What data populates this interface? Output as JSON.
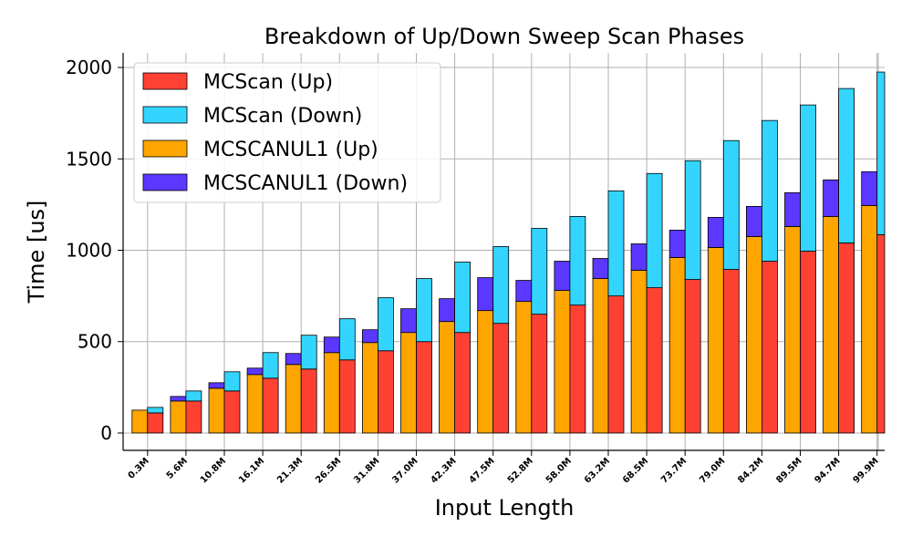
{
  "chart_data": {
    "type": "bar",
    "title": "Breakdown of Up/Down Sweep Scan Phases",
    "xlabel": "Input Length",
    "ylabel": "Time [us]",
    "ylim": [
      -95,
      2080
    ],
    "yticks": [
      0,
      500,
      1000,
      1500,
      2000
    ],
    "grid": true,
    "legend_position": "top-left",
    "categories": [
      "0.3M",
      "5.6M",
      "10.8M",
      "16.1M",
      "21.3M",
      "26.5M",
      "31.8M",
      "37.0M",
      "42.3M",
      "47.5M",
      "52.8M",
      "58.0M",
      "63.2M",
      "68.5M",
      "73.7M",
      "79.0M",
      "84.2M",
      "89.5M",
      "94.7M",
      "99.9M"
    ],
    "colors": {
      "mcscan_up": "#ff4133",
      "mcscan_down": "#33d5ff",
      "mcscanul1_up": "#ffa500",
      "mcscanul1_down": "#5b37ff"
    },
    "series": [
      {
        "name": "MCScan (Up)",
        "key": "mcscan_up",
        "group": "MCScan",
        "values": [
          110,
          175,
          230,
          300,
          350,
          400,
          450,
          500,
          550,
          600,
          650,
          700,
          750,
          795,
          840,
          895,
          940,
          995,
          1040,
          1085
        ]
      },
      {
        "name": "MCScan (Down)",
        "key": "mcscan_down",
        "group": "MCScan",
        "values": [
          30,
          55,
          105,
          140,
          185,
          225,
          290,
          345,
          385,
          420,
          470,
          485,
          575,
          625,
          650,
          705,
          770,
          800,
          845,
          890
        ]
      },
      {
        "name": "MCSCANUL1 (Up)",
        "key": "mcscanul1_up",
        "group": "MCSCANUL1",
        "values": [
          125,
          175,
          245,
          320,
          375,
          440,
          495,
          550,
          610,
          670,
          720,
          780,
          845,
          890,
          960,
          1015,
          1075,
          1130,
          1185,
          1245
        ]
      },
      {
        "name": "MCSCANUL1 (Down)",
        "key": "mcscanul1_down",
        "group": "MCSCANUL1",
        "values": [
          0,
          25,
          30,
          35,
          60,
          85,
          70,
          130,
          125,
          180,
          115,
          160,
          110,
          145,
          150,
          165,
          165,
          185,
          200,
          185
        ]
      }
    ],
    "legend": [
      "MCScan (Up)",
      "MCScan (Down)",
      "MCSCANUL1 (Up)",
      "MCSCANUL1 (Down)"
    ]
  }
}
